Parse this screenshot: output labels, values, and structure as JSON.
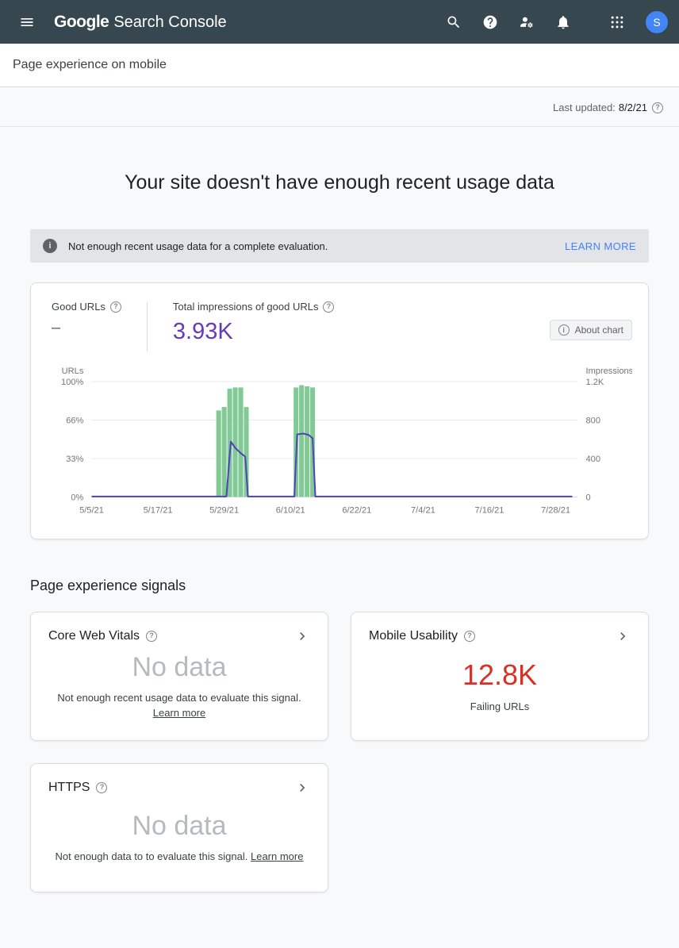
{
  "header": {
    "logo_google": "Google",
    "logo_product": "Search Console",
    "avatar_letter": "S"
  },
  "subheader": {
    "title": "Page experience on mobile"
  },
  "meta": {
    "last_updated_label": "Last updated:",
    "last_updated_value": "8/2/21"
  },
  "hero": {
    "title": "Your site doesn't have enough recent usage data"
  },
  "banner": {
    "message": "Not enough recent usage data for a complete evaluation.",
    "action_label": "LEARN MORE"
  },
  "chart_card": {
    "good_urls_label": "Good URLs",
    "good_urls_value": "–",
    "impressions_label": "Total impressions of good URLs",
    "impressions_value": "3.93K",
    "about_chart_label": "About chart"
  },
  "signals": {
    "heading": "Page experience signals",
    "cards": [
      {
        "title": "Core Web Vitals",
        "value": "No data",
        "caption": "Not enough recent usage data to evaluate this signal.",
        "link_label": "Learn more"
      },
      {
        "title": "Mobile Usability",
        "value": "12.8K",
        "caption": "Failing URLs",
        "link_label": ""
      },
      {
        "title": "HTTPS",
        "value": "No data",
        "caption": "Not enough data to to evaluate this signal.",
        "link_label": "Learn more"
      }
    ]
  },
  "icons": {
    "help_glyph": "?",
    "info_glyph": "i"
  },
  "colors": {
    "appbar_bg": "#37474f",
    "accent_blue": "#4285f4",
    "impressions_purple": "#673ab7",
    "error_red": "#d93025",
    "nodata_gray": "#b6babf"
  },
  "chart_data": {
    "type": "combo",
    "title": "Good URLs and total impressions of good URLs over time",
    "x_max": 88,
    "x_ticks": [
      {
        "i": 0,
        "label": "5/5/21"
      },
      {
        "i": 12,
        "label": "5/17/21"
      },
      {
        "i": 24,
        "label": "5/29/21"
      },
      {
        "i": 36,
        "label": "6/10/21"
      },
      {
        "i": 48,
        "label": "6/22/21"
      },
      {
        "i": 60,
        "label": "7/4/21"
      },
      {
        "i": 72,
        "label": "7/16/21"
      },
      {
        "i": 84,
        "label": "7/28/21"
      }
    ],
    "left_axis": {
      "title": "URLs",
      "ticks": [
        "100%",
        "66%",
        "33%",
        "0%"
      ],
      "max": 100
    },
    "right_axis": {
      "title": "Impressions",
      "ticks": [
        "1.2K",
        "800",
        "400",
        "0"
      ],
      "max": 1200
    },
    "bars": {
      "name": "Good URLs (%)",
      "color": "#81c995",
      "points": [
        [
          23,
          75
        ],
        [
          24,
          78
        ],
        [
          25,
          94
        ],
        [
          26,
          95
        ],
        [
          27,
          95
        ],
        [
          28,
          78
        ],
        [
          37,
          95
        ],
        [
          38,
          97
        ],
        [
          39,
          96
        ],
        [
          40,
          95
        ]
      ]
    },
    "line": {
      "name": "Impressions of good URLs",
      "color": "#4e43b8",
      "points": [
        [
          0,
          4
        ],
        [
          24.4,
          4
        ],
        [
          25.2,
          575
        ],
        [
          26,
          510
        ],
        [
          27,
          455
        ],
        [
          27.8,
          420
        ],
        [
          28.3,
          4
        ],
        [
          36.7,
          4
        ],
        [
          37.2,
          650
        ],
        [
          38.3,
          660
        ],
        [
          39.3,
          645
        ],
        [
          40,
          610
        ],
        [
          40.5,
          4
        ],
        [
          87,
          4
        ]
      ]
    }
  }
}
